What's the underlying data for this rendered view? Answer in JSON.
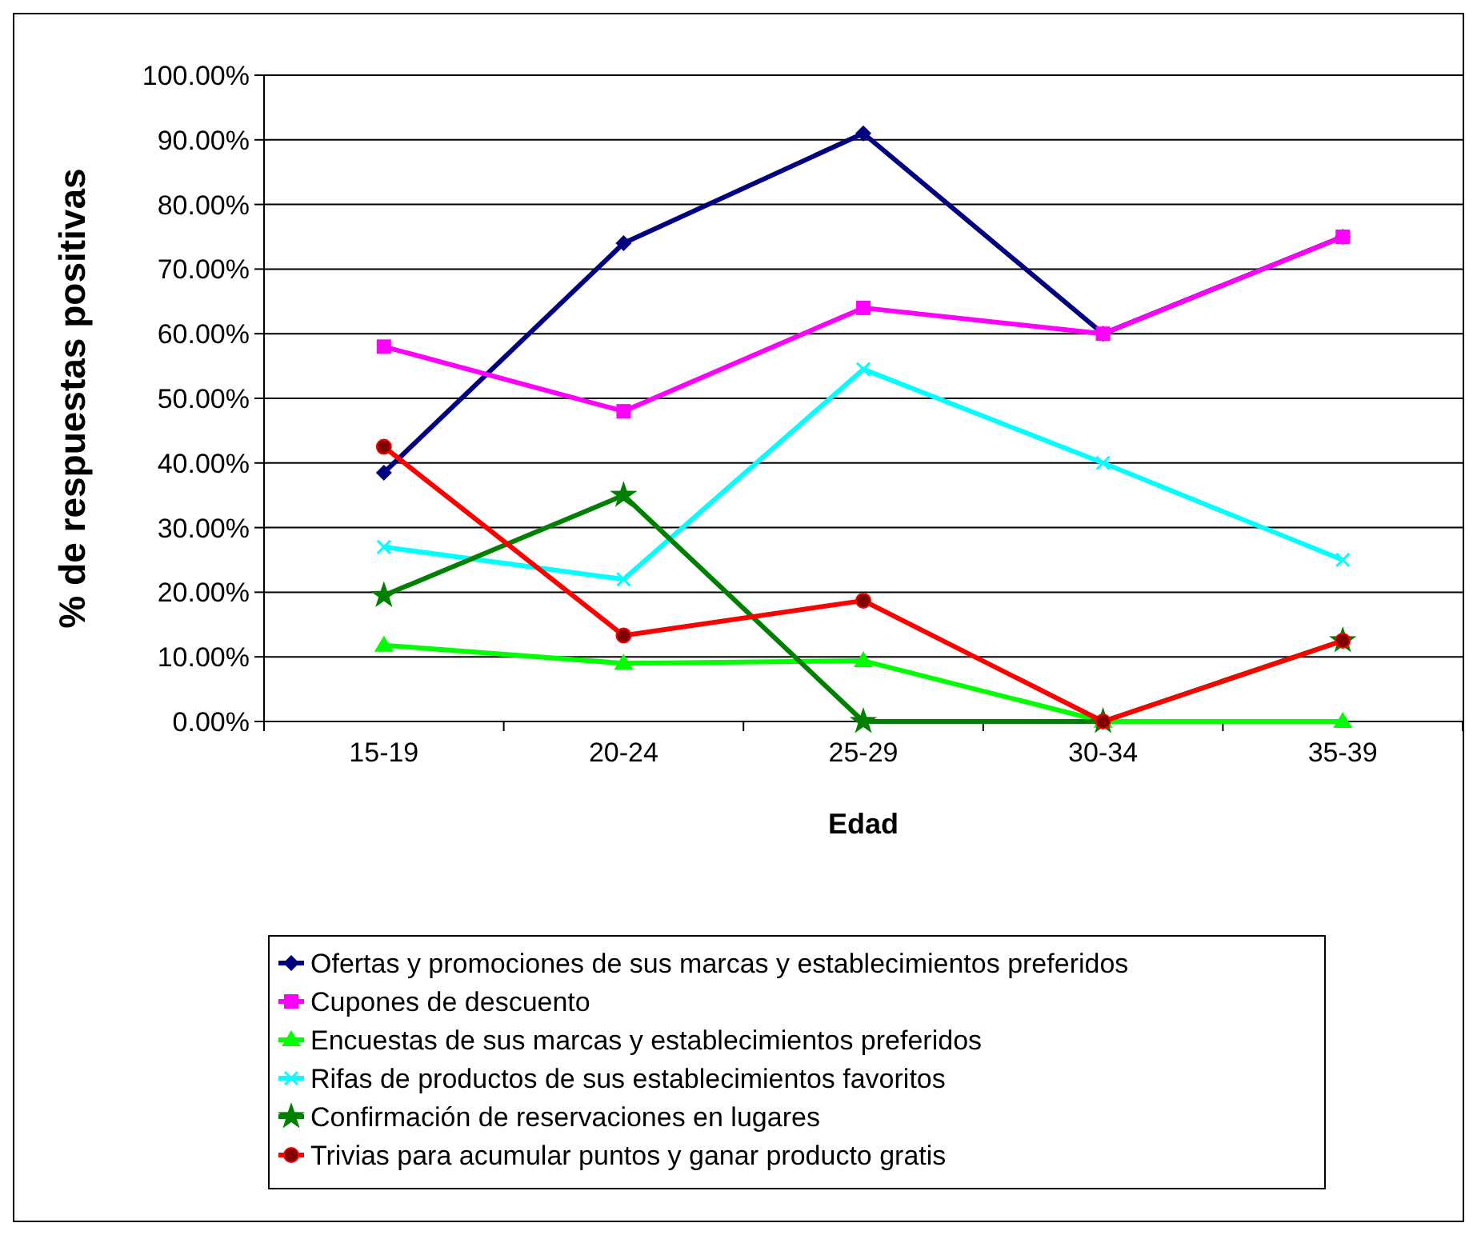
{
  "chart_data": {
    "type": "line",
    "xlabel": "Edad",
    "ylabel": "% de respuestas positivas",
    "categories": [
      "15-19",
      "20-24",
      "25-29",
      "30-34",
      "35-39"
    ],
    "ylim": [
      0,
      100
    ],
    "yticks": [
      {
        "value": 0,
        "label": "0.00%"
      },
      {
        "value": 10,
        "label": "10.00%"
      },
      {
        "value": 20,
        "label": "20.00%"
      },
      {
        "value": 30,
        "label": "30.00%"
      },
      {
        "value": 40,
        "label": "40.00%"
      },
      {
        "value": 50,
        "label": "50.00%"
      },
      {
        "value": 60,
        "label": "60.00%"
      },
      {
        "value": 70,
        "label": "70.00%"
      },
      {
        "value": 80,
        "label": "80.00%"
      },
      {
        "value": 90,
        "label": "90.00%"
      },
      {
        "value": 100,
        "label": "100.00%"
      }
    ],
    "grid": "y",
    "legend": "bottom",
    "line_style": "solid",
    "series": [
      {
        "name": "Ofertas y promociones de sus marcas y establecimientos preferidos",
        "color": "#000080",
        "marker": "diamond",
        "values": [
          38.5,
          74,
          91,
          60,
          75
        ]
      },
      {
        "name": "Cupones de descuento",
        "color": "#ff00ff",
        "marker": "square",
        "values": [
          58,
          48,
          64,
          60,
          75
        ]
      },
      {
        "name": "Encuestas de sus marcas y establecimientos preferidos",
        "color": "#00ff00",
        "marker": "triangle",
        "values": [
          11.8,
          9,
          9.4,
          0,
          0
        ]
      },
      {
        "name": "Rifas de productos de sus establecimientos favoritos",
        "color": "#00ffff",
        "marker": "cross",
        "values": [
          27,
          22,
          54.5,
          40,
          25
        ]
      },
      {
        "name": "Confirmación de reservaciones en lugares",
        "color": "#008000",
        "marker": "star",
        "values": [
          19.5,
          35,
          0,
          0,
          12.5
        ]
      },
      {
        "name": "Trivias para acumular puntos y ganar producto gratis",
        "color": "#ff0000",
        "marker": "circle",
        "values": [
          42.5,
          13.3,
          18.7,
          0,
          12.5
        ]
      }
    ]
  }
}
